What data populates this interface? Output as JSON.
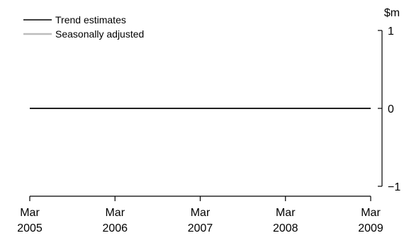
{
  "chart_data": {
    "type": "line",
    "unit_label": "$m",
    "x_ticks": [
      {
        "line1": "Mar",
        "line2": "2005",
        "date": "2005-03"
      },
      {
        "line1": "Mar",
        "line2": "2006",
        "date": "2006-03"
      },
      {
        "line1": "Mar",
        "line2": "2007",
        "date": "2007-03"
      },
      {
        "line1": "Mar",
        "line2": "2008",
        "date": "2008-03"
      },
      {
        "line1": "Mar",
        "line2": "2009",
        "date": "2009-03"
      }
    ],
    "y_ticks": [
      "1",
      "0",
      "−1"
    ],
    "ylim": [
      -1,
      1
    ],
    "y_axis_side": "right",
    "grid": false,
    "legend_position": "top-left",
    "series": [
      {
        "name": "Trend estimates",
        "color": "#000000",
        "x": [
          "2005-03",
          "2005-06",
          "2005-09",
          "2005-12",
          "2006-03",
          "2006-06",
          "2006-09",
          "2006-12",
          "2007-03",
          "2007-06",
          "2007-09",
          "2007-12",
          "2008-03",
          "2008-06",
          "2008-09",
          "2008-12",
          "2009-03"
        ],
        "values": [
          0,
          0,
          0,
          0,
          0,
          0,
          0,
          0,
          0,
          0,
          0,
          0,
          0,
          0,
          0,
          0,
          0
        ]
      },
      {
        "name": "Seasonally adjusted",
        "color": "#bdbdbd",
        "x": [],
        "values": []
      }
    ]
  }
}
